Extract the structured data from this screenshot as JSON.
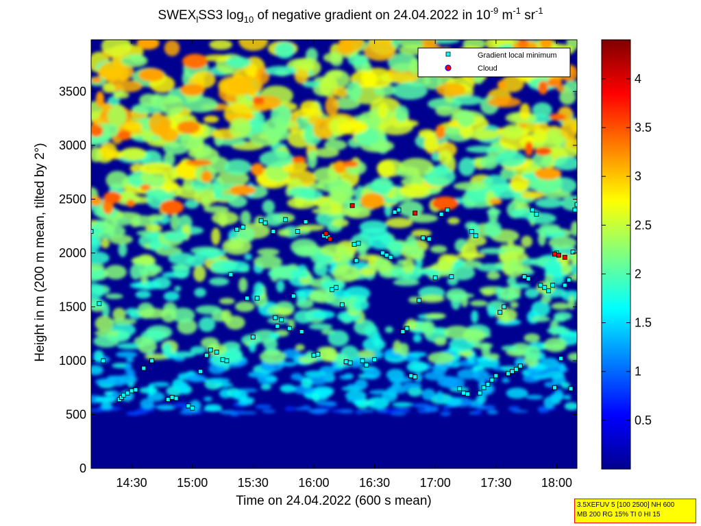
{
  "chart_data": {
    "type": "heatmap",
    "title": {
      "part1": "SWEX",
      "sub1": "l",
      "part2": "SS3 log",
      "sub2": "10",
      "part3": " of negative gradient on 24.04.2022 in 10",
      "sup1": "-9",
      "part4": " m",
      "sup2": "-1",
      "part5": " sr",
      "sup3": "-1"
    },
    "xlabel": "Time on 24.04.2022 (600 s mean)",
    "ylabel": "Height in m (200 m mean, tilted by 2°)",
    "x_range": [
      "14:10",
      "18:10"
    ],
    "y_range": [
      0,
      3980
    ],
    "x_ticks": [
      "14:30",
      "15:00",
      "15:30",
      "16:00",
      "16:30",
      "17:00",
      "17:30",
      "18:00"
    ],
    "y_ticks": [
      0,
      500,
      1000,
      1500,
      2000,
      2500,
      3000,
      3500
    ],
    "colorbar": {
      "range": [
        0,
        4.4
      ],
      "ticks": [
        0.5,
        1,
        1.5,
        2,
        2.5,
        3,
        3.5,
        4
      ],
      "colormap": "jet"
    },
    "legend": {
      "position": "top-right",
      "entries": [
        {
          "label": "Gradient local minimum",
          "marker": "square",
          "color": "#00ffff"
        },
        {
          "label": "Cloud",
          "marker": "circle",
          "color": "#ff0000"
        }
      ]
    },
    "gradient_minima": [
      {
        "t": "14:10",
        "h": 2200
      },
      {
        "t": "14:14",
        "h": 1530
      },
      {
        "t": "14:16",
        "h": 1000
      },
      {
        "t": "14:24",
        "h": 640
      },
      {
        "t": "14:25",
        "h": 660
      },
      {
        "t": "14:26",
        "h": 680
      },
      {
        "t": "14:28",
        "h": 700
      },
      {
        "t": "14:30",
        "h": 720
      },
      {
        "t": "14:32",
        "h": 730
      },
      {
        "t": "14:36",
        "h": 930
      },
      {
        "t": "14:40",
        "h": 1000
      },
      {
        "t": "14:48",
        "h": 640
      },
      {
        "t": "14:50",
        "h": 660
      },
      {
        "t": "14:52",
        "h": 650
      },
      {
        "t": "14:58",
        "h": 580
      },
      {
        "t": "15:00",
        "h": 560
      },
      {
        "t": "15:04",
        "h": 900
      },
      {
        "t": "15:07",
        "h": 1050
      },
      {
        "t": "15:09",
        "h": 1100
      },
      {
        "t": "15:12",
        "h": 1080
      },
      {
        "t": "15:15",
        "h": 1010
      },
      {
        "t": "15:17",
        "h": 1000
      },
      {
        "t": "15:19",
        "h": 1800
      },
      {
        "t": "15:22",
        "h": 2220
      },
      {
        "t": "15:25",
        "h": 2240
      },
      {
        "t": "15:27",
        "h": 1580
      },
      {
        "t": "15:30",
        "h": 1220
      },
      {
        "t": "15:32",
        "h": 1580
      },
      {
        "t": "15:34",
        "h": 2300
      },
      {
        "t": "15:36",
        "h": 2280
      },
      {
        "t": "15:40",
        "h": 2200
      },
      {
        "t": "15:41",
        "h": 1400
      },
      {
        "t": "15:42",
        "h": 1320
      },
      {
        "t": "15:44",
        "h": 1380
      },
      {
        "t": "15:46",
        "h": 2310
      },
      {
        "t": "15:48",
        "h": 1300
      },
      {
        "t": "15:50",
        "h": 1600
      },
      {
        "t": "15:52",
        "h": 2200
      },
      {
        "t": "15:54",
        "h": 1270
      },
      {
        "t": "15:56",
        "h": 2290
      },
      {
        "t": "16:00",
        "h": 1050
      },
      {
        "t": "16:02",
        "h": 1060
      },
      {
        "t": "16:05",
        "h": 2160
      },
      {
        "t": "16:07",
        "h": 2150
      },
      {
        "t": "16:09",
        "h": 1660
      },
      {
        "t": "16:11",
        "h": 1680
      },
      {
        "t": "16:14",
        "h": 1520
      },
      {
        "t": "16:16",
        "h": 990
      },
      {
        "t": "16:18",
        "h": 980
      },
      {
        "t": "16:20",
        "h": 2080
      },
      {
        "t": "16:21",
        "h": 1930
      },
      {
        "t": "16:22",
        "h": 2090
      },
      {
        "t": "16:24",
        "h": 1000
      },
      {
        "t": "16:26",
        "h": 960
      },
      {
        "t": "16:30",
        "h": 1010
      },
      {
        "t": "16:34",
        "h": 2000
      },
      {
        "t": "16:36",
        "h": 1980
      },
      {
        "t": "16:38",
        "h": 1960
      },
      {
        "t": "16:40",
        "h": 2380
      },
      {
        "t": "16:42",
        "h": 2400
      },
      {
        "t": "16:44",
        "h": 1270
      },
      {
        "t": "16:46",
        "h": 1300
      },
      {
        "t": "16:48",
        "h": 860
      },
      {
        "t": "16:50",
        "h": 850
      },
      {
        "t": "16:52",
        "h": 1560
      },
      {
        "t": "16:54",
        "h": 2140
      },
      {
        "t": "16:57",
        "h": 2130
      },
      {
        "t": "17:00",
        "h": 1770
      },
      {
        "t": "17:03",
        "h": 2360
      },
      {
        "t": "17:06",
        "h": 2400
      },
      {
        "t": "17:08",
        "h": 1780
      },
      {
        "t": "17:12",
        "h": 740
      },
      {
        "t": "17:14",
        "h": 700
      },
      {
        "t": "17:16",
        "h": 690
      },
      {
        "t": "17:18",
        "h": 2200
      },
      {
        "t": "17:20",
        "h": 2160
      },
      {
        "t": "17:22",
        "h": 700
      },
      {
        "t": "17:24",
        "h": 750
      },
      {
        "t": "17:26",
        "h": 780
      },
      {
        "t": "17:28",
        "h": 820
      },
      {
        "t": "17:30",
        "h": 860
      },
      {
        "t": "17:32",
        "h": 1450
      },
      {
        "t": "17:34",
        "h": 1500
      },
      {
        "t": "17:36",
        "h": 880
      },
      {
        "t": "17:38",
        "h": 900
      },
      {
        "t": "17:40",
        "h": 920
      },
      {
        "t": "17:42",
        "h": 950
      },
      {
        "t": "17:44",
        "h": 1780
      },
      {
        "t": "17:46",
        "h": 1760
      },
      {
        "t": "17:48",
        "h": 2400
      },
      {
        "t": "17:50",
        "h": 2360
      },
      {
        "t": "17:52",
        "h": 1700
      },
      {
        "t": "17:54",
        "h": 1680
      },
      {
        "t": "17:56",
        "h": 1650
      },
      {
        "t": "17:58",
        "h": 1700
      },
      {
        "t": "17:59",
        "h": 750
      },
      {
        "t": "18:00",
        "h": 2000
      },
      {
        "t": "18:02",
        "h": 1020
      },
      {
        "t": "18:04",
        "h": 1700
      },
      {
        "t": "18:06",
        "h": 1750
      },
      {
        "t": "18:07",
        "h": 740
      },
      {
        "t": "18:08",
        "h": 2010
      },
      {
        "t": "18:09",
        "h": 2400
      },
      {
        "t": "18:10",
        "h": 2450
      }
    ],
    "clouds": [
      {
        "t": "16:06",
        "h": 2180
      },
      {
        "t": "16:08",
        "h": 2130
      },
      {
        "t": "16:19",
        "h": 2440
      },
      {
        "t": "16:50",
        "h": 2370
      },
      {
        "t": "17:59",
        "h": 1990
      },
      {
        "t": "18:01",
        "h": 1980
      },
      {
        "t": "18:04",
        "h": 1960
      }
    ]
  },
  "info_box": {
    "line1": "3.5XEFUV 5 [100 2500] NH 600",
    "line2": "MB 200 RG 15% TI 0 HI 15"
  }
}
